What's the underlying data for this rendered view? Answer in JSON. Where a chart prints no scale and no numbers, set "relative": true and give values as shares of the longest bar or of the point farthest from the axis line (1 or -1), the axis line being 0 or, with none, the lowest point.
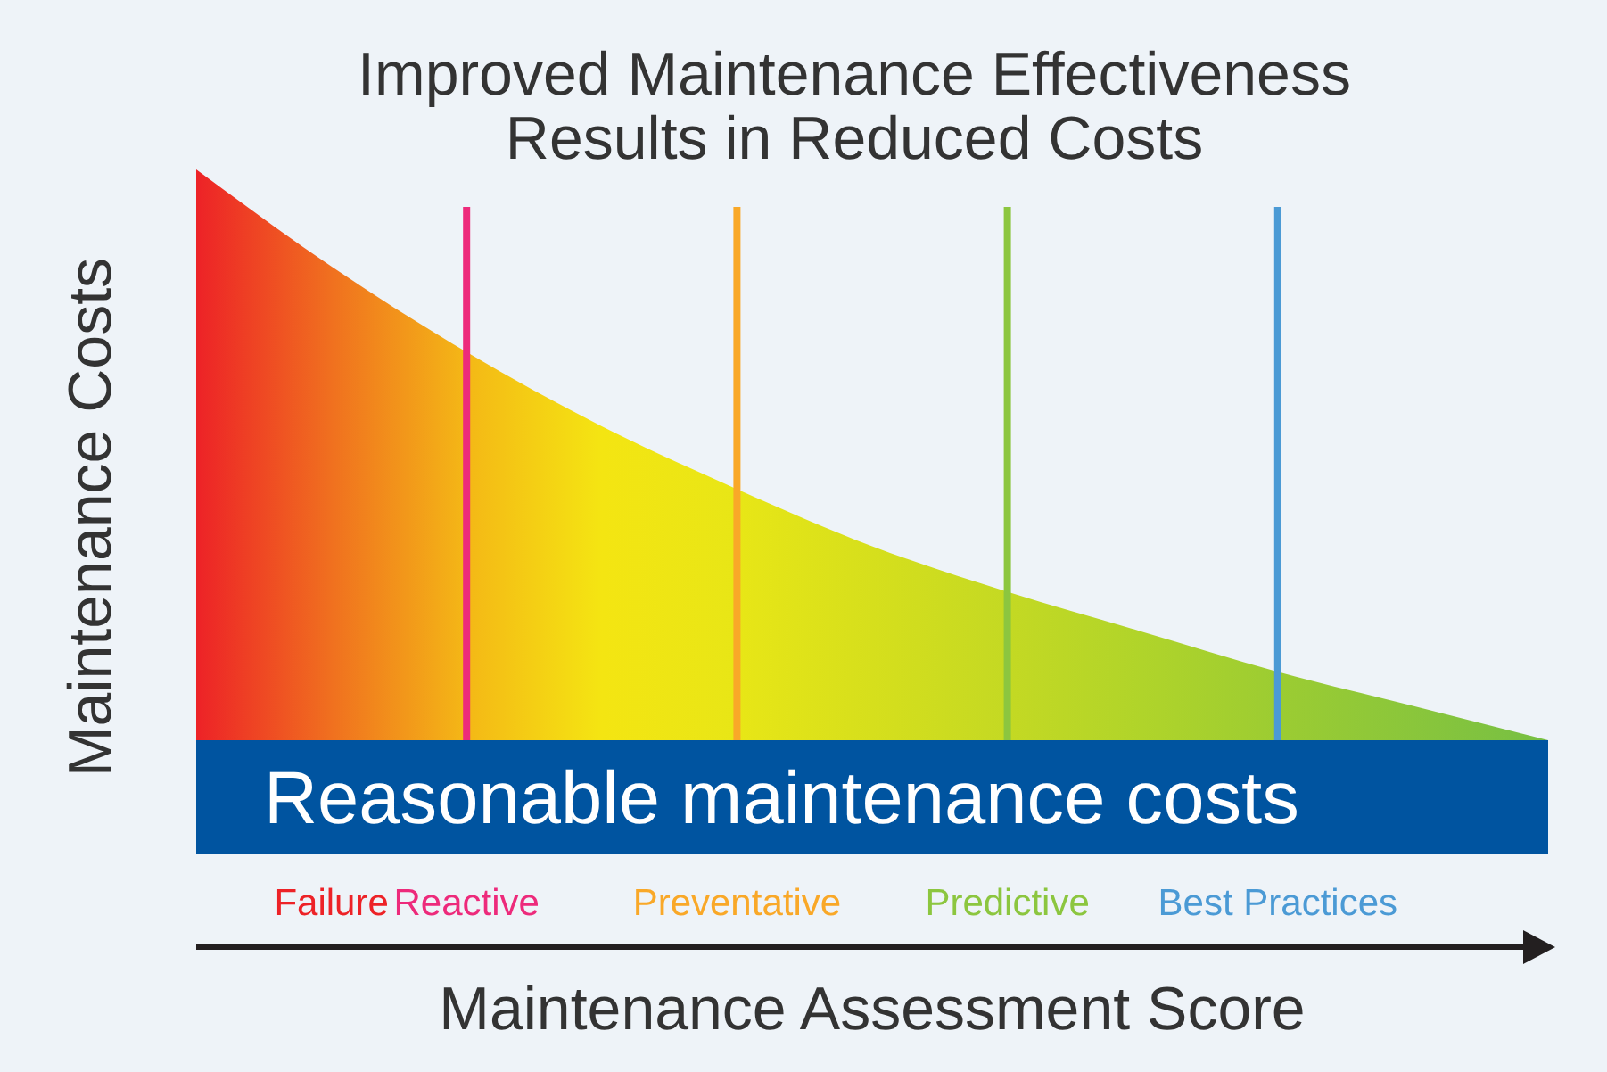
{
  "chart_data": {
    "type": "area",
    "title": "Improved Maintenance Effectiveness\nResults in Reduced Costs",
    "xlabel": "Maintenance Assessment Score",
    "ylabel": "Maintenance Costs",
    "relative": true,
    "categories": [
      null,
      "Failure",
      "Reactive",
      null,
      "Preventative",
      null,
      "Predictive",
      null,
      "Best Practices",
      null,
      null
    ],
    "series": [
      {
        "colors": [
          "#ed2227",
          "#f0701f",
          "#f4b816",
          "#f4e512",
          "#e8e616",
          "#d6df1c",
          "#c4d923",
          "#b0d42a",
          "#9ccc32",
          "#8ac63b",
          "#76bf43"
        ],
        "values": [
          1,
          0.83,
          0.68,
          0.55,
          0.44,
          0.34,
          0.26,
          0.19,
          0.12,
          0.06,
          0
        ]
      }
    ],
    "bands": [
      {
        "axis": "y",
        "from": -0.2,
        "to": 0,
        "label": "Reasonable maintenance costs",
        "color": "#0054a0"
      }
    ],
    "ref_lines": [
      {
        "axis": "x",
        "value": "Reactive",
        "color": "#ed2a7b"
      },
      {
        "axis": "x",
        "value": "Preventative",
        "color": "#f9a828"
      },
      {
        "axis": "x",
        "value": "Predictive",
        "color": "#8cc63f"
      },
      {
        "axis": "x",
        "value": "Best Practices",
        "color": "#4b9ad5"
      }
    ]
  }
}
